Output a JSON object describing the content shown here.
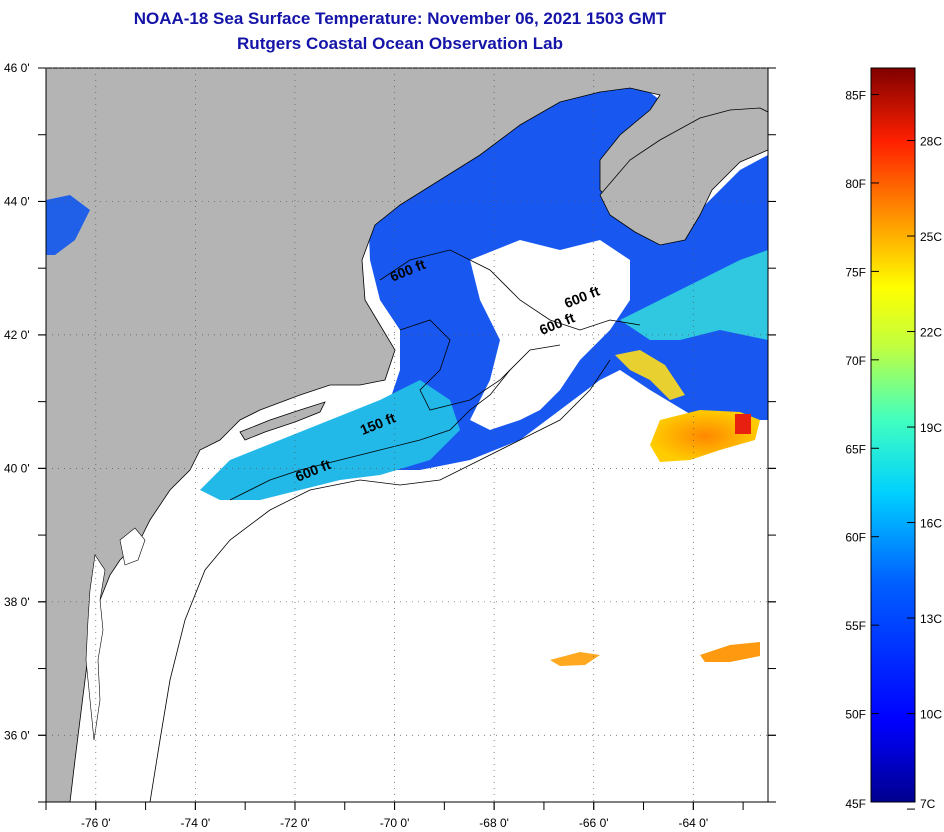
{
  "title": {
    "line1": "NOAA-18 Sea Surface Temperature:  November 06, 2021 1503 GMT",
    "line2": "Rutgers Coastal Ocean Observation Lab"
  },
  "map": {
    "lat_labels": [
      "46 0'",
      "44 0'",
      "42 0'",
      "40 0'",
      "38 0'",
      "36 0'"
    ],
    "lat_values": [
      46,
      44,
      42,
      40,
      38,
      36
    ],
    "lon_labels": [
      "-76 0'",
      "-74 0'",
      "-72 0'",
      "-70 0'",
      "-68 0'",
      "-66 0'",
      "-64 0'"
    ],
    "lon_values": [
      -76,
      -74,
      -72,
      -70,
      -68,
      -66,
      -64
    ],
    "lon_range": [
      -77,
      -62.5
    ],
    "lat_range": [
      35,
      46
    ],
    "contour_labels": [
      {
        "text": "600 ft",
        "lon": -69.7,
        "lat": 42.9
      },
      {
        "text": "600 ft",
        "lon": -66.2,
        "lat": 42.5
      },
      {
        "text": "600 ft",
        "lon": -66.7,
        "lat": 42.1
      },
      {
        "text": "150 ft",
        "lon": -70.3,
        "lat": 40.6
      },
      {
        "text": "600 ft",
        "lon": -71.6,
        "lat": 39.9
      }
    ]
  },
  "colorbar": {
    "f_labels": [
      "85F",
      "80F",
      "75F",
      "70F",
      "65F",
      "60F",
      "55F",
      "50F",
      "45F"
    ],
    "c_labels": [
      "28C",
      "25C",
      "22C",
      "19C",
      "16C",
      "13C",
      "10C",
      "7C"
    ],
    "colors": [
      "#00008f",
      "#0000ff",
      "#0080ff",
      "#00ffff",
      "#80ff80",
      "#ffff00",
      "#ff8000",
      "#ff0000",
      "#800000"
    ]
  }
}
